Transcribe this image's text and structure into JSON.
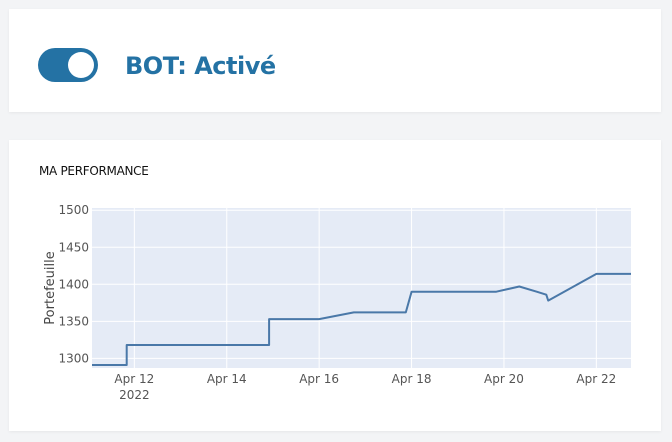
{
  "bot": {
    "toggle_on": true,
    "status_label": "BOT: Activé",
    "accent_color": "#2472a4"
  },
  "performance": {
    "title": "MA PERFORMANCE"
  },
  "chart_data": {
    "type": "line",
    "title": "",
    "xlabel": "",
    "ylabel": "Portefeuille",
    "x_ticks": [
      "Apr 12",
      "Apr 14",
      "Apr 16",
      "Apr 18",
      "Apr 20",
      "Apr 22"
    ],
    "x_year_label": "2022",
    "y_ticks": [
      "1300",
      "1350",
      "1400",
      "1450",
      "1500"
    ],
    "xlim": [
      "2022-04-11 02:00",
      "2022-04-22 18:00"
    ],
    "ylim": [
      1287,
      1503
    ],
    "grid": true,
    "line_color": "#4a78a8",
    "plot_bg": "#e5ebf6",
    "series": [
      {
        "points": [
          [
            "2022-04-11 02:00",
            1291
          ],
          [
            "2022-04-11 20:00",
            1291
          ],
          [
            "2022-04-11 20:00",
            1318
          ],
          [
            "2022-04-14 22:00",
            1318
          ],
          [
            "2022-04-14 22:00",
            1353
          ],
          [
            "2022-04-16 00:00",
            1353
          ],
          [
            "2022-04-16 18:00",
            1362
          ],
          [
            "2022-04-17 21:00",
            1362
          ],
          [
            "2022-04-18 00:00",
            1390
          ],
          [
            "2022-04-19 20:00",
            1390
          ],
          [
            "2022-04-20 08:00",
            1397
          ],
          [
            "2022-04-20 17:00",
            1390
          ],
          [
            "2022-04-20 22:00",
            1386
          ],
          [
            "2022-04-20 23:00",
            1378
          ],
          [
            "2022-04-22 00:00",
            1414
          ],
          [
            "2022-04-22 18:00",
            1414
          ]
        ]
      }
    ]
  }
}
